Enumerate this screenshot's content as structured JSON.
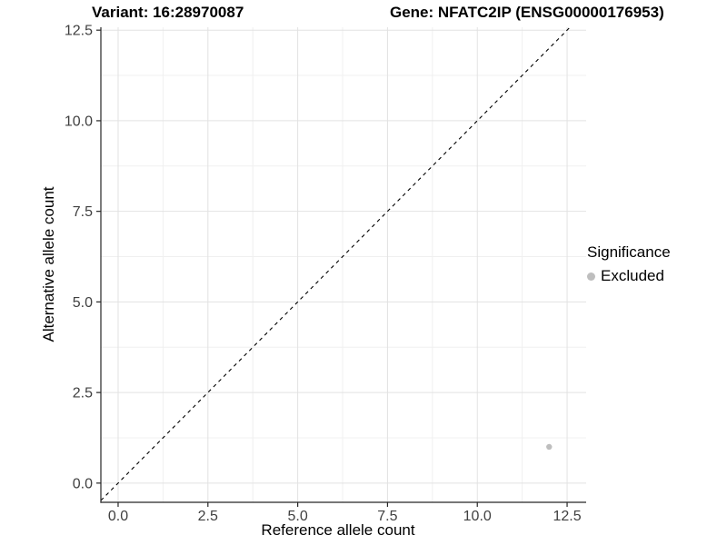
{
  "header": {
    "variant_title": "Variant: 16:28970087",
    "gene_title": "Gene: NFATC2IP (ENSG00000176953)"
  },
  "chart_data": {
    "type": "scatter",
    "title_left": "Variant: 16:28970087",
    "title_right": "Gene: NFATC2IP (ENSG00000176953)",
    "xlabel": "Reference allele count",
    "ylabel": "Alternative allele count",
    "xlim": [
      -0.48,
      13.03
    ],
    "ylim": [
      -0.53,
      12.58
    ],
    "x_ticks": {
      "values": [
        0,
        2.5,
        5,
        7.5,
        10,
        12.5
      ],
      "labels": [
        "0.0",
        "2.5",
        "5.0",
        "7.5",
        "10.0",
        "12.5"
      ]
    },
    "y_ticks": {
      "values": [
        0,
        2.5,
        5,
        7.5,
        10,
        12.5
      ],
      "labels": [
        "0.0",
        "2.5",
        "5.0",
        "7.5",
        "10.0",
        "12.5"
      ]
    },
    "x_minor": [
      1.25,
      3.75,
      6.25,
      8.75,
      11.25
    ],
    "y_minor": [
      1.25,
      3.75,
      6.25,
      8.75,
      11.25
    ],
    "grid": "major+minor",
    "identity_line": {
      "slope": 1,
      "intercept": 0,
      "style": "dashed",
      "color": "#000000"
    },
    "series": [
      {
        "name": "Excluded",
        "color": "#bebebe",
        "marker": "circle",
        "points": [
          {
            "x": 12,
            "y": 1
          }
        ]
      }
    ],
    "legend": {
      "title": "Significance",
      "position": "right",
      "items": [
        {
          "label": "Excluded",
          "color": "#bebebe"
        }
      ]
    },
    "colors": {
      "grid_major": "#e2e2e2",
      "grid_minor": "#f0f0f0",
      "axis_line": "#262626",
      "tick_text": "#404040",
      "excluded_point": "#bebebe"
    }
  }
}
